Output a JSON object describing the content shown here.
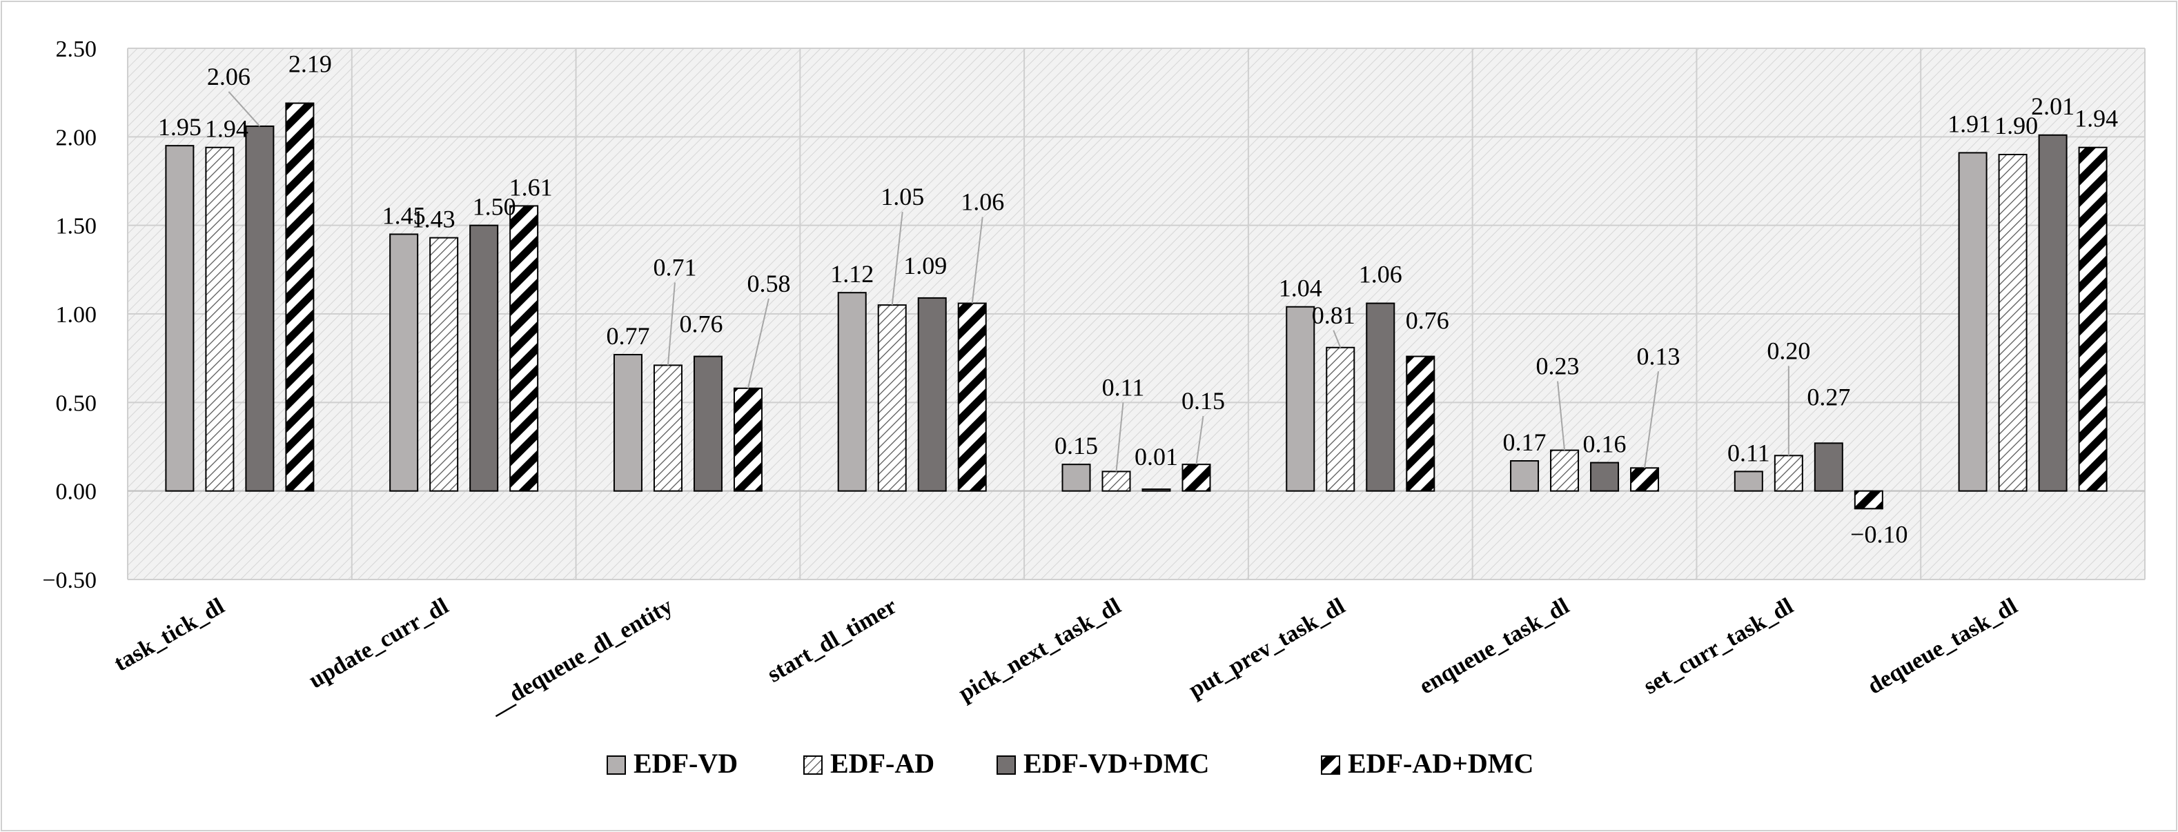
{
  "chart_data": {
    "type": "bar",
    "title": "",
    "xlabel": "",
    "ylabel": "",
    "ylim": [
      -0.5,
      2.5
    ],
    "yticks": [
      -0.5,
      0.0,
      0.5,
      1.0,
      1.5,
      2.0,
      2.5
    ],
    "ytick_labels": [
      "−0.50",
      "0.00",
      "0.50",
      "1.00",
      "1.50",
      "2.00",
      "2.50"
    ],
    "grid": true,
    "legend_position": "bottom-center",
    "categories": [
      "task_tick_dl",
      "update_curr_dl",
      "__dequeue_dl_entity",
      "start_dl_timer",
      "pick_next_task_dl",
      "put_prev_task_dl",
      "enqueue_task_dl",
      "set_curr_task_dl",
      "dequeue_task_dl"
    ],
    "series": [
      {
        "name": "EDF-VD",
        "pattern": "solid-light",
        "color": "#b3b0b0",
        "values": [
          1.95,
          1.45,
          0.77,
          1.12,
          0.15,
          1.04,
          0.17,
          0.11,
          1.91
        ],
        "labels": [
          "1.95",
          "1.45",
          "0.77",
          "1.12",
          "0.15",
          "1.04",
          "0.17",
          "0.11",
          "1.91"
        ]
      },
      {
        "name": "EDF-AD",
        "pattern": "crosshatch",
        "color": "#555555",
        "values": [
          1.94,
          1.43,
          0.71,
          1.05,
          0.11,
          0.81,
          0.23,
          0.2,
          1.9
        ],
        "labels": [
          "1.94",
          "1.43",
          "0.71",
          "1.05",
          "0.11",
          "0.81",
          "0.23",
          "0.20",
          "1.90"
        ]
      },
      {
        "name": "EDF-VD+DMC",
        "pattern": "solid-dark",
        "color": "#757171",
        "values": [
          2.06,
          1.5,
          0.76,
          1.09,
          0.01,
          1.06,
          0.16,
          0.27,
          2.01
        ],
        "labels": [
          "2.06",
          "1.50",
          "0.76",
          "1.09",
          "0.01",
          "1.06",
          "0.16",
          "0.27",
          "2.01"
        ]
      },
      {
        "name": "EDF-AD+DMC",
        "pattern": "thick-diagonal",
        "color": "#000000",
        "values": [
          2.19,
          1.61,
          0.58,
          1.06,
          0.15,
          0.76,
          0.13,
          -0.1,
          1.94
        ],
        "labels": [
          "2.19",
          "1.61",
          "0.58",
          "1.06",
          "0.15",
          "0.76",
          "0.13",
          "−0.10",
          "1.94"
        ]
      }
    ]
  }
}
